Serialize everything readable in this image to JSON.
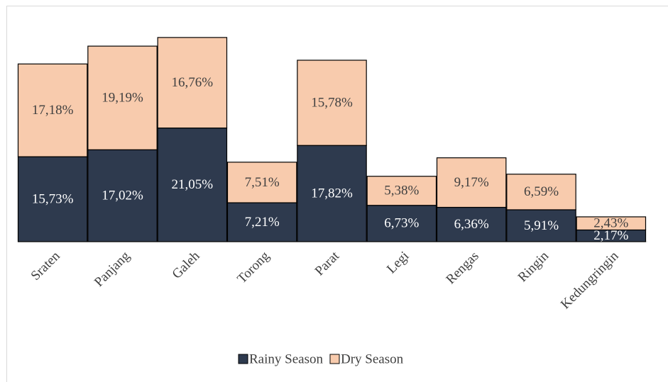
{
  "chart_data": {
    "type": "stacked_bar",
    "categories": [
      "Sraten",
      "Panjang",
      "Galeh",
      "Torong",
      "Parat",
      "Legi",
      "Rengas",
      "Ringin",
      "Kedungringin"
    ],
    "series": [
      {
        "name": "Rainy Season",
        "color": "#2e3a4e",
        "values": [
          15.73,
          17.02,
          21.05,
          7.21,
          17.82,
          6.73,
          6.36,
          5.91,
          2.17
        ],
        "value_labels": [
          "15,73%",
          "17,02%",
          "21,05%",
          "7,21%",
          "17,82%",
          "6,73%",
          "6,36%",
          "5,91%",
          "2,17%"
        ]
      },
      {
        "name": "Dry Season",
        "color": "#f8cbad",
        "values": [
          17.18,
          19.19,
          16.76,
          7.51,
          15.78,
          5.38,
          9.17,
          6.59,
          2.43
        ],
        "value_labels": [
          "17,18%",
          "19,19%",
          "16,76%",
          "7,51%",
          "15,78%",
          "5,38%",
          "9,17%",
          "6,59%",
          "2,43%"
        ]
      }
    ],
    "legend": "bottom"
  }
}
